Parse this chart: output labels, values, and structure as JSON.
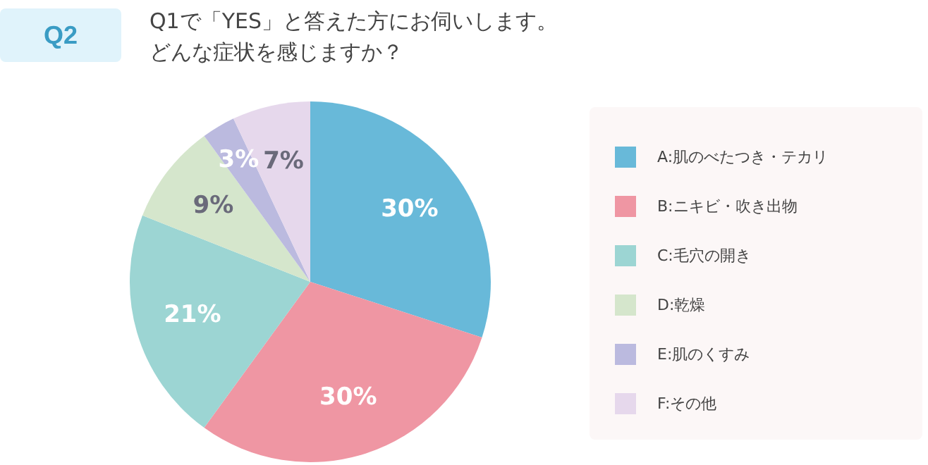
{
  "chart_data": {
    "type": "pie",
    "title": "Q1で「YES」と答えた方にお伺いします。",
    "subtitle": "どんな症状を感じますか？",
    "annotations": [
      "Q2"
    ],
    "categories": [
      "A:肌のべたつき・テカリ",
      "B:ニキビ・吹き出物",
      "C:毛穴の開き",
      "D:乾燥",
      "E:肌のくすみ",
      "F:その他"
    ],
    "values": [
      30,
      30,
      21,
      9,
      3,
      7
    ],
    "value_labels": [
      "30%",
      "30%",
      "21%",
      "9%",
      "3%",
      "7%"
    ],
    "colors": [
      "#68b9d9",
      "#ef96a3",
      "#9cd5d3",
      "#d5e6cc",
      "#bbbadf",
      "#e6d8ec"
    ],
    "legend": "right"
  }
}
